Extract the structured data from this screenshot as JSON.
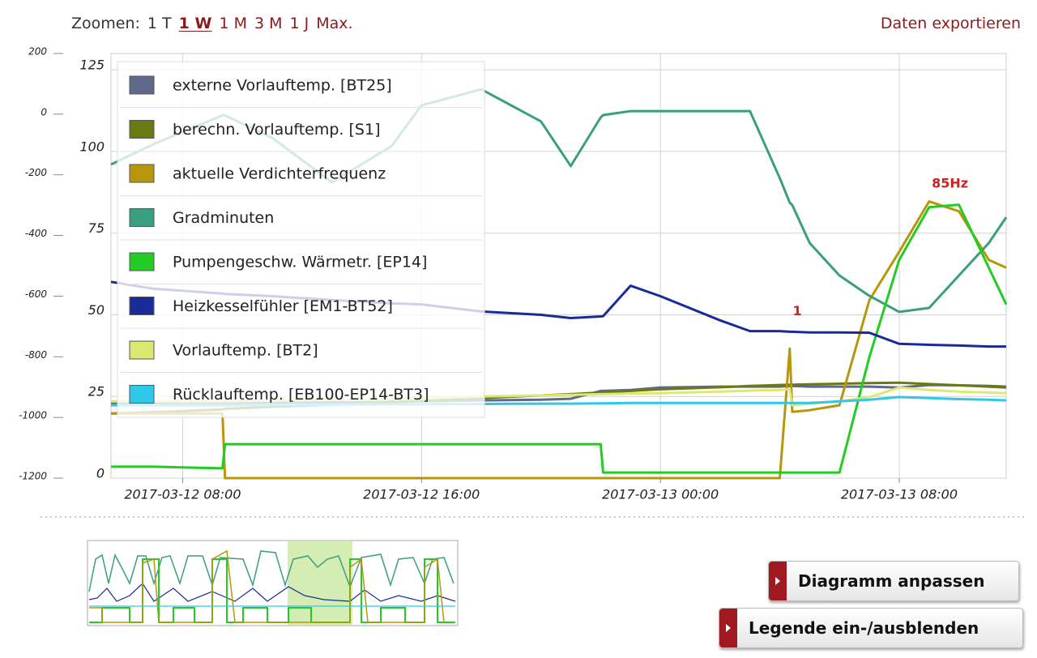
{
  "toolbar": {
    "zoom_label": "Zoomen:",
    "zoom_options": [
      "1 T",
      "1 W",
      "1 M",
      "3 M",
      "1 J",
      "Max."
    ],
    "export": "Daten exportieren"
  },
  "chart_data": {
    "type": "line",
    "x": [
      "2017-03-12 05:36",
      "2017-03-12 07:00",
      "2017-03-12 09:20",
      "2017-03-12 09:25",
      "2017-03-12 11:00",
      "2017-03-12 13:00",
      "2017-03-12 15:00",
      "2017-03-12 16:00",
      "2017-03-12 18:00",
      "2017-03-12 20:00",
      "2017-03-12 21:00",
      "2017-03-12 22:00",
      "2017-03-12 22:05",
      "2017-03-12 23:00",
      "2017-03-13 00:00",
      "2017-03-13 02:00",
      "2017-03-13 03:00",
      "2017-03-13 04:00",
      "2017-03-13 04:20",
      "2017-03-13 04:25",
      "2017-03-13 05:00",
      "2017-03-13 06:00",
      "2017-03-13 07:00",
      "2017-03-13 08:00",
      "2017-03-13 09:00",
      "2017-03-13 10:00",
      "2017-03-13 11:00",
      "2017-03-13 11:35"
    ],
    "xlim": [
      "2017-03-12 05:36",
      "2017-03-13 11:35"
    ],
    "xticks": [
      "2017-03-12 08:00",
      "2017-03-12 16:00",
      "2017-03-13 00:00",
      "2017-03-13 08:00"
    ],
    "ylim": [
      0,
      130
    ],
    "yticks": [
      0,
      25,
      50,
      75,
      100,
      125
    ],
    "y2lim": [
      -1200,
      200
    ],
    "y2ticks": [
      -1200,
      -1000,
      -800,
      -600,
      -400,
      -200,
      0,
      200
    ],
    "grid": true,
    "series": [
      {
        "name": "externe Vorlauftemp. [BT25]",
        "color": "#5f6a8a",
        "values": [
          22.8,
          22.8,
          22.8,
          22.8,
          23,
          23.2,
          23.4,
          23.5,
          23.8,
          24,
          24.3,
          26.7,
          26.7,
          27,
          27.7,
          28,
          28,
          28,
          28.2,
          28.2,
          28,
          28,
          28,
          27.7,
          28.5,
          28.4,
          28.2,
          28
        ]
      },
      {
        "name": "berechn. Vorlauftemp. [S1]",
        "color": "#6b7a10",
        "values": [
          19.8,
          20.2,
          21,
          21.2,
          21.8,
          22.5,
          23.2,
          23.6,
          24.5,
          25.3,
          25.7,
          26.2,
          26.2,
          26.7,
          27.2,
          27.8,
          28.2,
          28.5,
          28.6,
          28.6,
          28.7,
          28.9,
          29.1,
          29.2,
          28.8,
          28.4,
          28,
          27.7
        ]
      },
      {
        "name": "aktuelle Verdichterfrequenz",
        "color": "#b8960c",
        "values": [
          19.8,
          19.8,
          19.8,
          0,
          0,
          0,
          0,
          0,
          0,
          0,
          0,
          0,
          0,
          0,
          0,
          0,
          0,
          0,
          39.6,
          20.3,
          20.8,
          22.3,
          54.5,
          69.3,
          84.7,
          81.7,
          66.8,
          64.4
        ]
      },
      {
        "name": "Gradminuten",
        "color": "#3a9e80",
        "axis": "y2",
        "values": [
          -166,
          -100,
          -4,
          -4,
          -78,
          -225,
          -105,
          29,
          82,
          -24,
          -171,
          -11,
          -3,
          10,
          10,
          10,
          10,
          -211,
          -292,
          -300,
          -425,
          -532,
          -599,
          -652,
          -639,
          -532,
          -425,
          -340
        ]
      },
      {
        "name": "Pumpengeschw. Wärmetr. [EP14]",
        "color": "#22cc22",
        "values": [
          3.5,
          3.5,
          3,
          10.4,
          10.4,
          10.4,
          10.4,
          10.4,
          10.4,
          10.4,
          10.4,
          10.4,
          1.7,
          1.7,
          1.7,
          1.7,
          1.7,
          1.7,
          1.7,
          1.7,
          1.7,
          1.7,
          37.1,
          66.8,
          82.9,
          83.7,
          64.4,
          53.2
        ]
      },
      {
        "name": "Heizkesselfühler [EM1-BT52]",
        "color": "#1a2b99",
        "values": [
          60.1,
          58,
          56.5,
          56.4,
          55.7,
          54.5,
          53.5,
          53.2,
          51,
          50,
          49,
          49.5,
          49.6,
          58.9,
          55.7,
          48.3,
          45,
          45,
          44.8,
          44.8,
          44.6,
          44.6,
          44.5,
          41.1,
          40.8,
          40.6,
          40.3,
          40.3
        ]
      },
      {
        "name": "Vorlauftemp. [BT2]",
        "color": "#dde870",
        "values": [
          23.5,
          23.5,
          23.5,
          23.5,
          23.8,
          24,
          24.3,
          24.5,
          25,
          25.3,
          25.5,
          25.7,
          25.7,
          25.9,
          26,
          26.5,
          26.8,
          27,
          27.2,
          22.3,
          22.8,
          23.5,
          24.8,
          27.7,
          27,
          26.5,
          26.2,
          26
        ]
      },
      {
        "name": "Rücklauftemp. [EB100-EP14-BT3]",
        "color": "#30c8e8",
        "values": [
          22.3,
          22.3,
          22.3,
          22.3,
          22.4,
          22.5,
          22.6,
          22.6,
          22.7,
          22.8,
          22.8,
          22.9,
          22.9,
          23,
          23,
          23,
          23,
          23,
          23,
          23,
          23,
          23.5,
          24,
          24.8,
          24.5,
          24.2,
          24,
          23.8
        ]
      }
    ],
    "annotations": [
      {
        "text": "85Hz",
        "x": "2017-03-13 09:42",
        "y": 90,
        "color": "#cc2222"
      },
      {
        "text": "1",
        "x": "2017-03-13 04:35",
        "y": 51,
        "color": "#cc2222"
      }
    ]
  },
  "buttons": [
    "Diagramm anpassen",
    "Legende ein-/ausblenden"
  ]
}
